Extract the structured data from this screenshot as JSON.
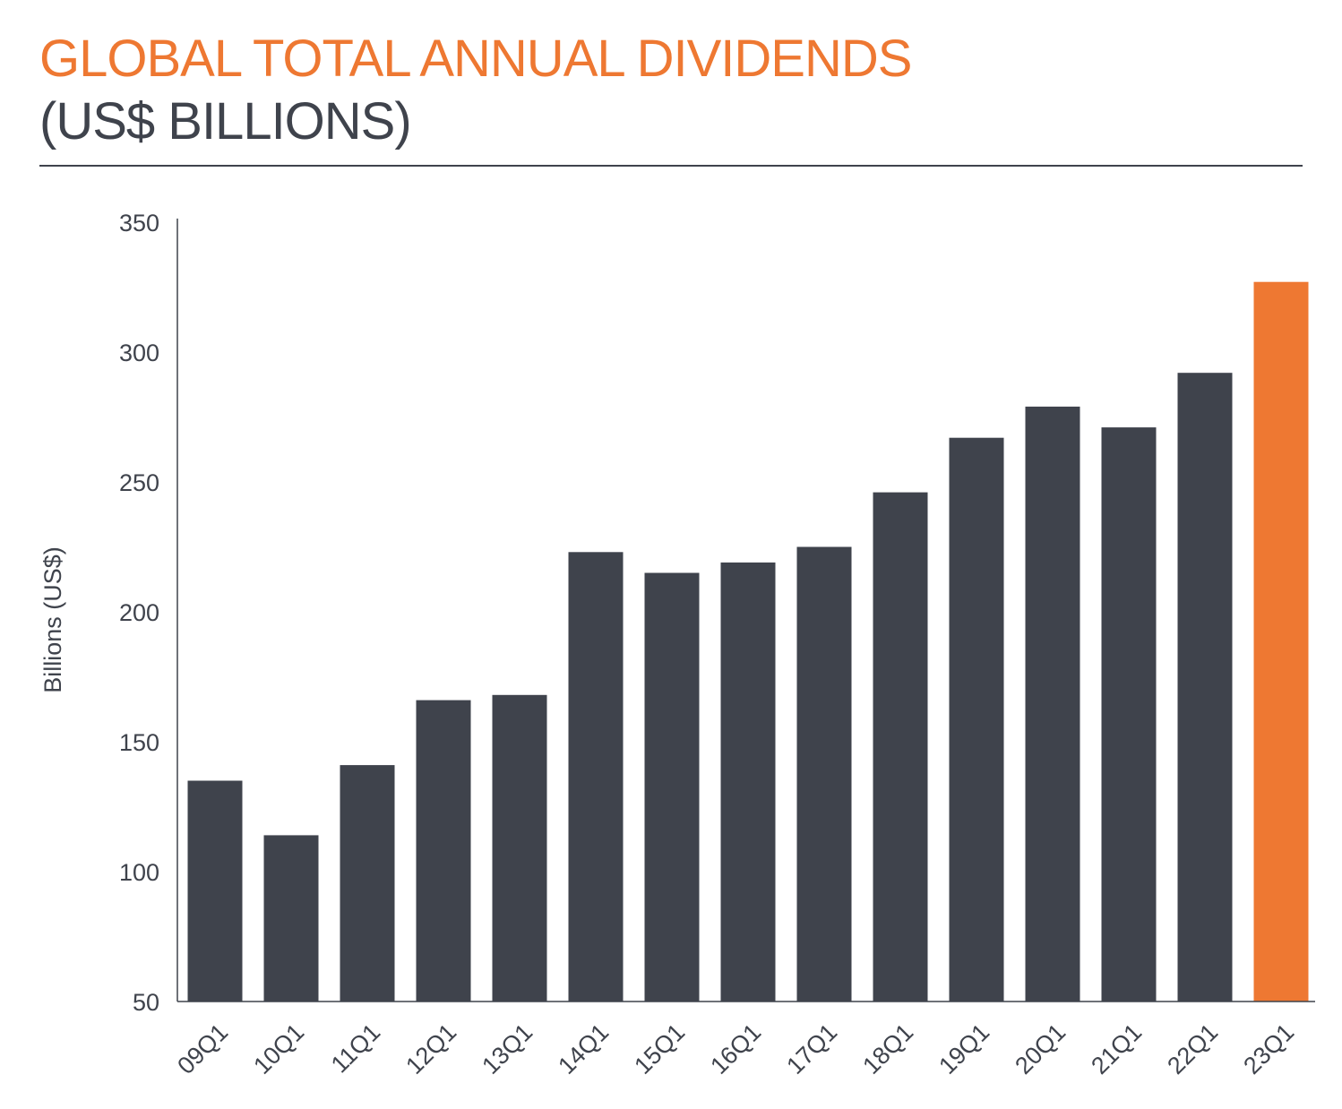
{
  "header": {
    "title_line1": "GLOBAL TOTAL ANNUAL DIVIDENDS",
    "title_line2": "(US$ BILLIONS)"
  },
  "colors": {
    "bar_default": "#3F434C",
    "bar_highlight": "#EE7832",
    "text_dark": "#3F434C",
    "accent": "#EE7832"
  },
  "chart_data": {
    "type": "bar",
    "title": "GLOBAL TOTAL ANNUAL DIVIDENDS (US$ BILLIONS)",
    "xlabel": "",
    "ylabel": "Billions (US$)",
    "ylim": [
      50,
      350
    ],
    "yticks": [
      50,
      100,
      150,
      200,
      250,
      300,
      350
    ],
    "categories": [
      "09Q1",
      "10Q1",
      "11Q1",
      "12Q1",
      "13Q1",
      "14Q1",
      "15Q1",
      "16Q1",
      "17Q1",
      "18Q1",
      "19Q1",
      "20Q1",
      "21Q1",
      "22Q1",
      "23Q1"
    ],
    "values": [
      135,
      114,
      141,
      166,
      168,
      223,
      215,
      219,
      225,
      246,
      267,
      279,
      271,
      292,
      327
    ],
    "highlight_category": "23Q1",
    "grid": false,
    "legend": "none"
  }
}
